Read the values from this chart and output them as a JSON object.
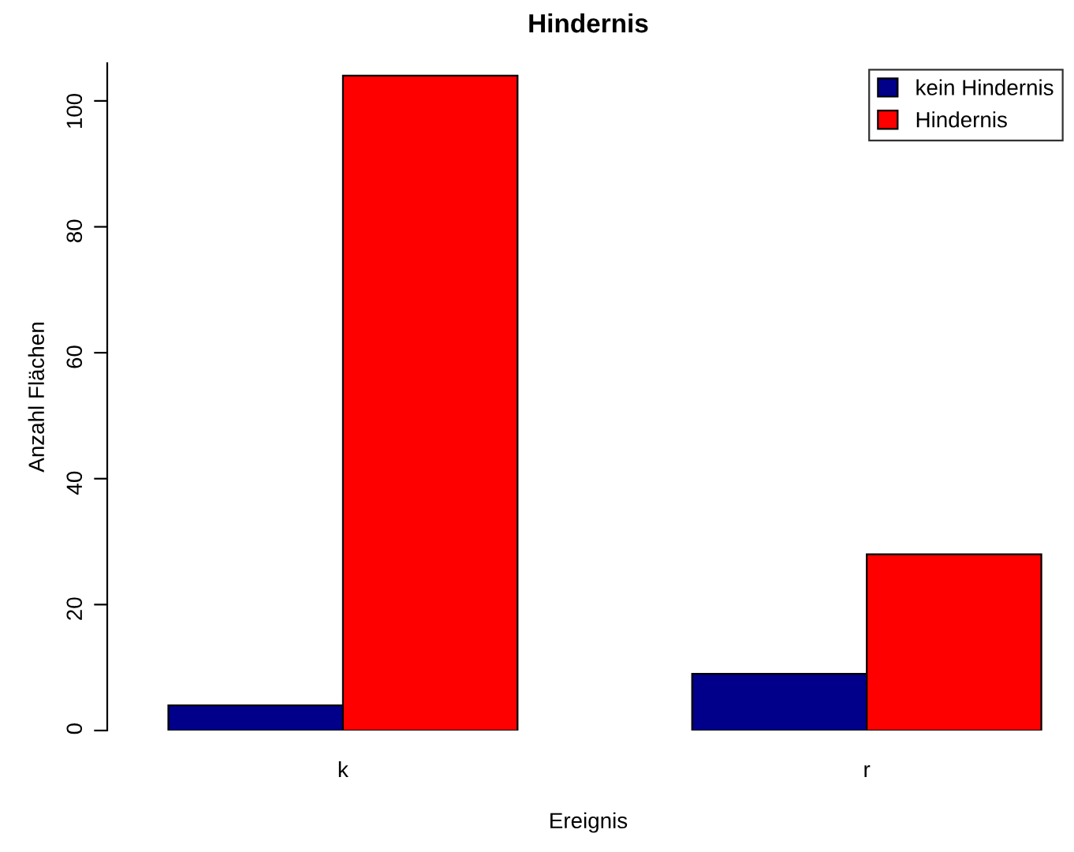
{
  "chart_data": {
    "type": "bar",
    "title": "Hindernis",
    "xlabel": "Ereignis",
    "ylabel": "Anzahl Flächen",
    "categories": [
      "k",
      "r"
    ],
    "series": [
      {
        "name": "kein Hindernis",
        "color": "#00008b",
        "values": [
          4,
          9
        ]
      },
      {
        "name": "Hindernis",
        "color": "#ff0000",
        "values": [
          104,
          28
        ]
      }
    ],
    "ylim": [
      0,
      106
    ],
    "yticks": [
      0,
      20,
      40,
      60,
      80,
      100
    ],
    "grid": false,
    "legend": "top right"
  }
}
